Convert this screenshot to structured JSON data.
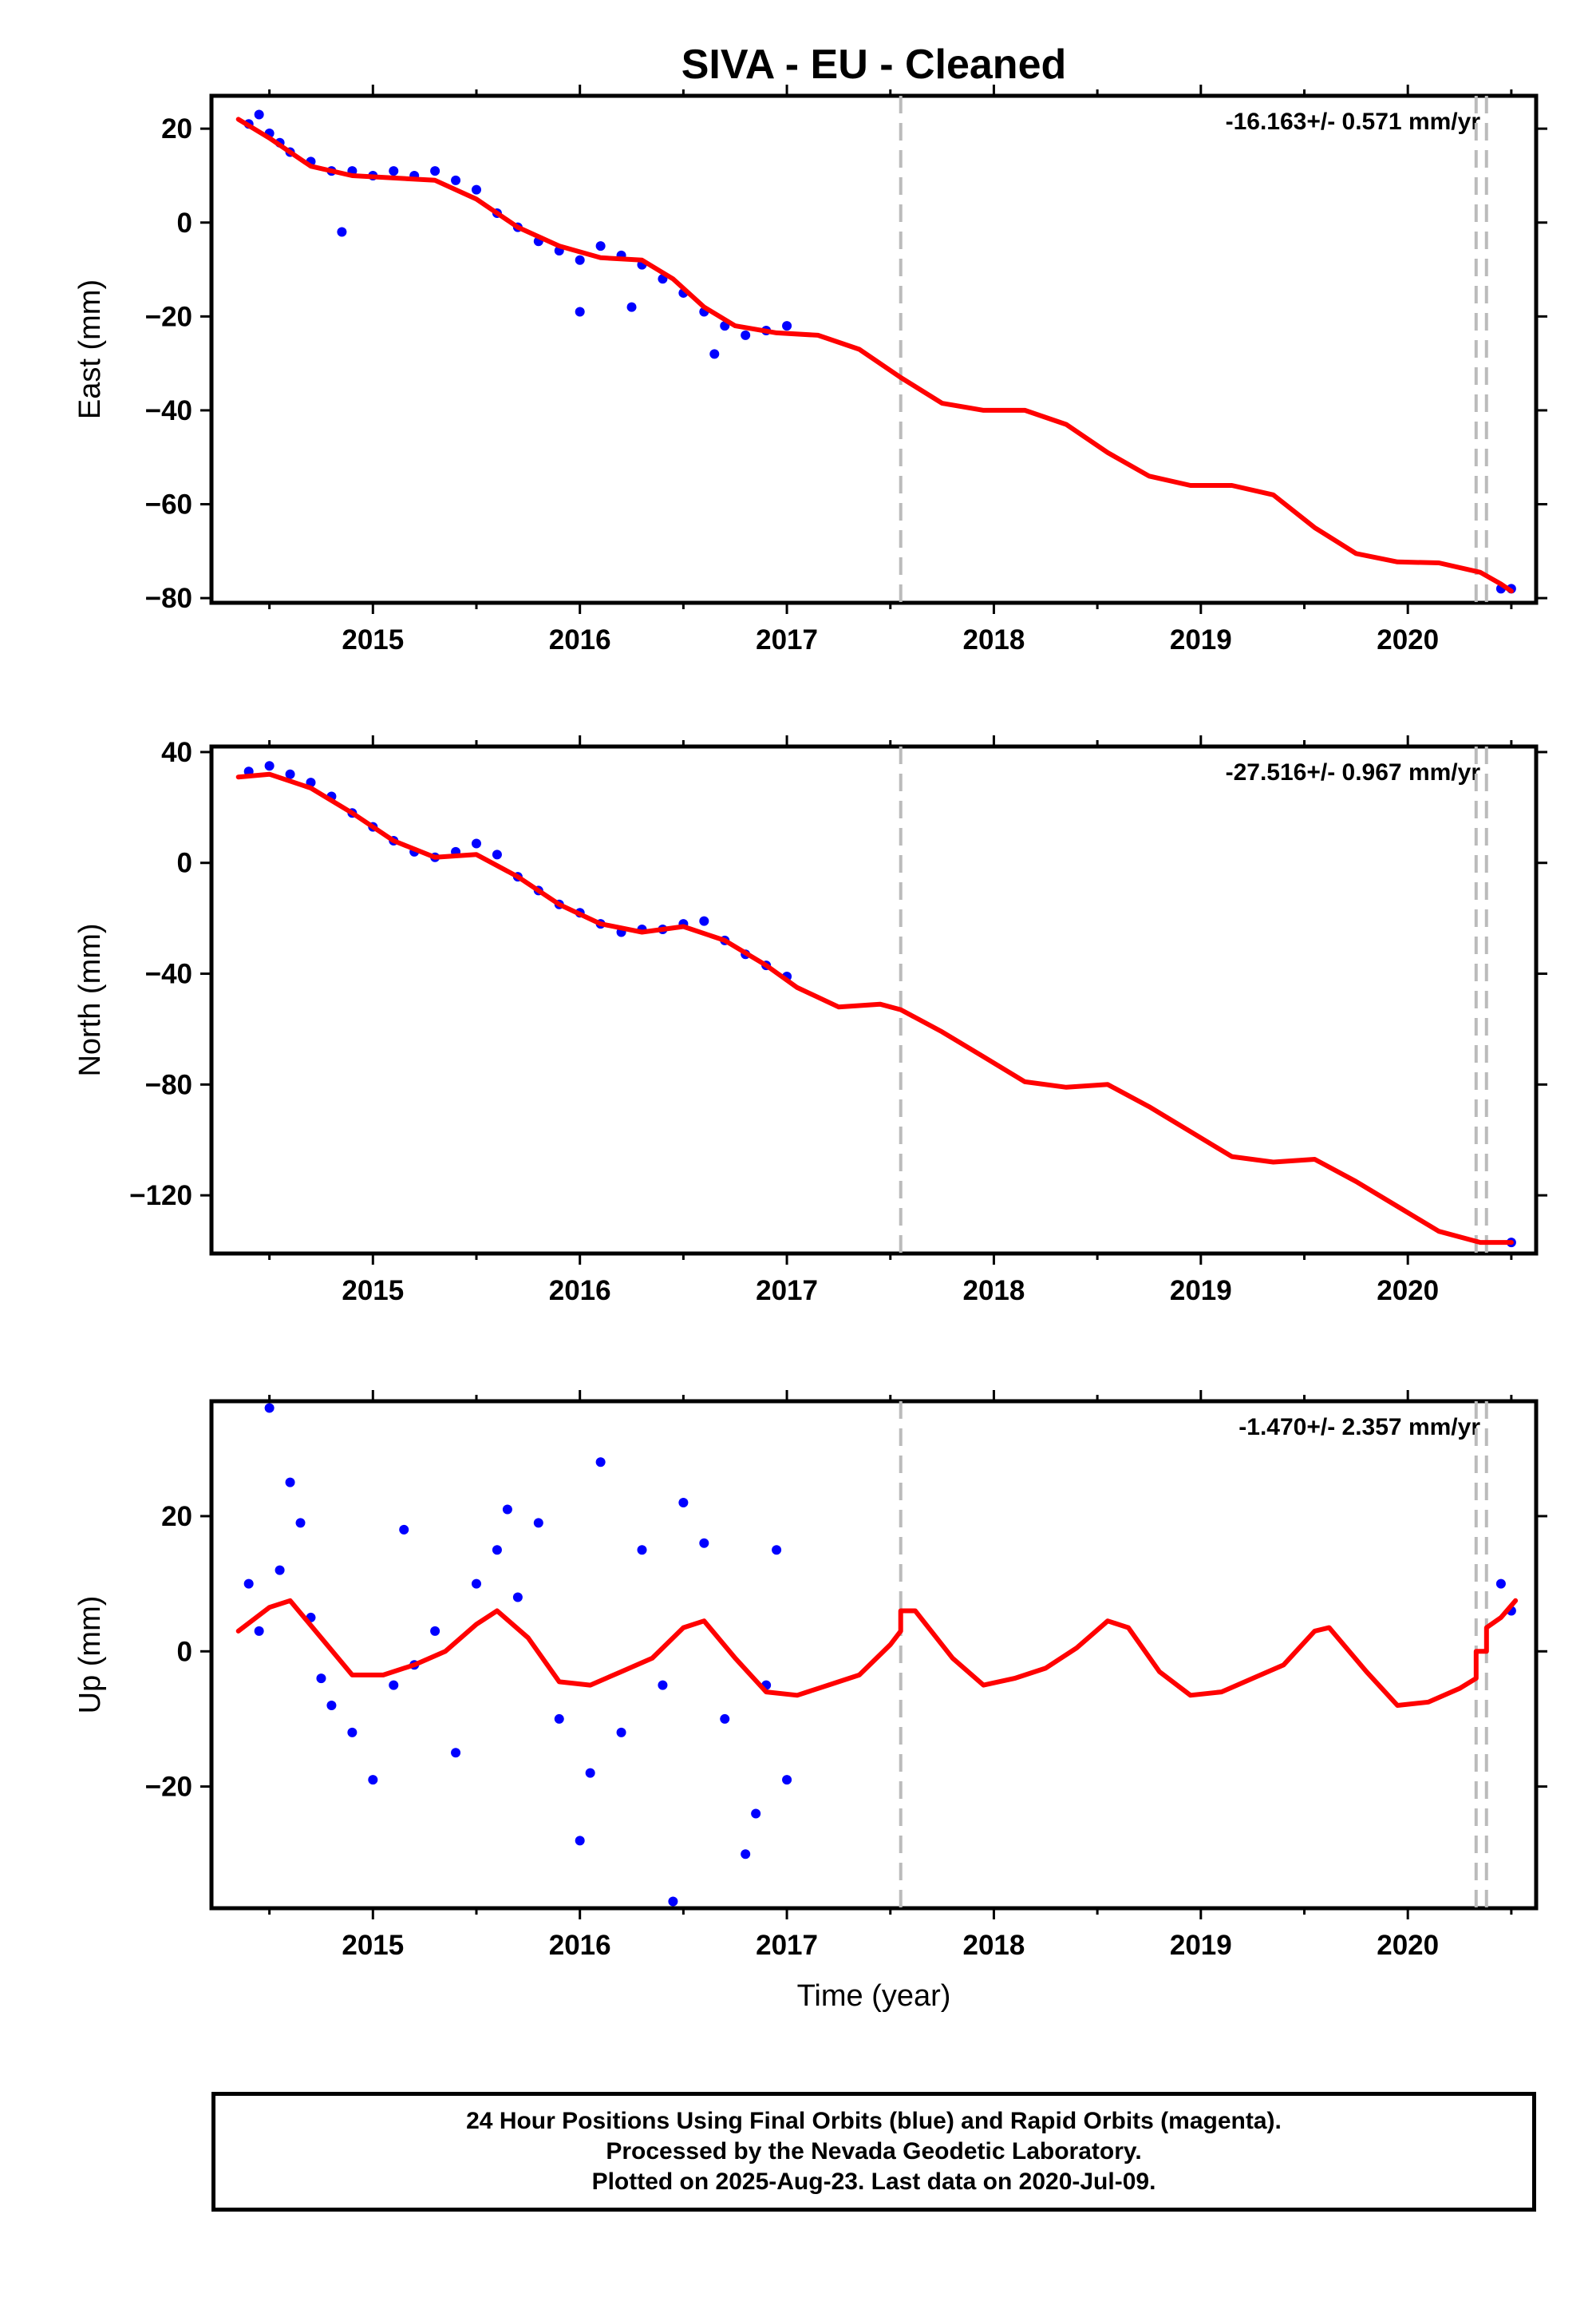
{
  "figure": {
    "title": "SIVA  - EU - Cleaned",
    "xlabel": "Time (year)"
  },
  "footer": {
    "line1": "24 Hour Positions Using Final Orbits (blue) and Rapid Orbits (magenta).",
    "line2": "Processed by the Nevada Geodetic Laboratory.",
    "line3": "Plotted on 2025-Aug-23. Last data on 2020-Jul-09."
  },
  "colors": {
    "data_points": "#0000ff",
    "model_line": "#ff0000",
    "event_lines": "#bbbbbb"
  },
  "event_lines_year": [
    2017.55,
    2020.33,
    2020.38
  ],
  "chart_data": [
    {
      "type": "scatter",
      "name": "east",
      "ylabel": "East (mm)",
      "rate_label": "-16.163+/- 0.571 mm/yr",
      "xlim": [
        2014.22,
        2020.62
      ],
      "ylim": [
        -81,
        27
      ],
      "xticks": [
        2015,
        2016,
        2017,
        2018,
        2019,
        2020
      ],
      "yticks": [
        20,
        0,
        -20,
        -40,
        -60,
        -80
      ],
      "scatter_sample": [
        [
          2014.4,
          21
        ],
        [
          2014.45,
          23
        ],
        [
          2014.5,
          19
        ],
        [
          2014.55,
          17
        ],
        [
          2014.6,
          15
        ],
        [
          2014.7,
          13
        ],
        [
          2014.8,
          11
        ],
        [
          2014.85,
          -2
        ],
        [
          2014.9,
          11
        ],
        [
          2015.0,
          10
        ],
        [
          2015.1,
          11
        ],
        [
          2015.2,
          10
        ],
        [
          2015.3,
          11
        ],
        [
          2015.4,
          9
        ],
        [
          2015.5,
          7
        ],
        [
          2015.6,
          2
        ],
        [
          2015.7,
          -1
        ],
        [
          2015.8,
          -4
        ],
        [
          2015.9,
          -6
        ],
        [
          2016.0,
          -8
        ],
        [
          2016.0,
          -19
        ],
        [
          2016.1,
          -5
        ],
        [
          2016.2,
          -7
        ],
        [
          2016.25,
          -18
        ],
        [
          2016.3,
          -9
        ],
        [
          2016.4,
          -12
        ],
        [
          2016.5,
          -15
        ],
        [
          2016.6,
          -19
        ],
        [
          2016.65,
          -28
        ],
        [
          2016.7,
          -22
        ],
        [
          2016.8,
          -24
        ],
        [
          2016.9,
          -23
        ],
        [
          2017.0,
          -22
        ],
        [
          2020.45,
          -78
        ],
        [
          2020.5,
          -78
        ]
      ],
      "model_line": [
        [
          2014.35,
          22
        ],
        [
          2014.5,
          18
        ],
        [
          2014.7,
          12
        ],
        [
          2014.9,
          10
        ],
        [
          2015.1,
          9.5
        ],
        [
          2015.3,
          9
        ],
        [
          2015.5,
          5
        ],
        [
          2015.7,
          -1
        ],
        [
          2015.9,
          -5
        ],
        [
          2016.1,
          -7.5
        ],
        [
          2016.3,
          -8
        ],
        [
          2016.45,
          -12
        ],
        [
          2016.6,
          -18
        ],
        [
          2016.75,
          -22
        ],
        [
          2016.95,
          -23.5
        ],
        [
          2017.15,
          -24
        ],
        [
          2017.35,
          -27
        ],
        [
          2017.55,
          -33
        ],
        [
          2017.75,
          -38.5
        ],
        [
          2017.95,
          -40
        ],
        [
          2018.15,
          -40
        ],
        [
          2018.35,
          -43
        ],
        [
          2018.55,
          -49
        ],
        [
          2018.75,
          -54
        ],
        [
          2018.95,
          -56
        ],
        [
          2019.15,
          -56
        ],
        [
          2019.35,
          -58
        ],
        [
          2019.55,
          -65
        ],
        [
          2019.75,
          -70.5
        ],
        [
          2019.95,
          -72.3
        ],
        [
          2020.15,
          -72.5
        ],
        [
          2020.35,
          -74.5
        ],
        [
          2020.45,
          -77
        ],
        [
          2020.5,
          -78.5
        ]
      ]
    },
    {
      "type": "scatter",
      "name": "north",
      "ylabel": "North (mm)",
      "rate_label": "-27.516+/- 0.967 mm/yr",
      "xlim": [
        2014.22,
        2020.62
      ],
      "ylim": [
        -141,
        42
      ],
      "xticks": [
        2015,
        2016,
        2017,
        2018,
        2019,
        2020
      ],
      "yticks": [
        40,
        0,
        -40,
        -80,
        -120
      ],
      "scatter_sample": [
        [
          2014.4,
          33
        ],
        [
          2014.5,
          35
        ],
        [
          2014.6,
          32
        ],
        [
          2014.7,
          29
        ],
        [
          2014.8,
          24
        ],
        [
          2014.9,
          18
        ],
        [
          2015.0,
          13
        ],
        [
          2015.1,
          8
        ],
        [
          2015.2,
          4
        ],
        [
          2015.3,
          2
        ],
        [
          2015.4,
          4
        ],
        [
          2015.5,
          7
        ],
        [
          2015.6,
          3
        ],
        [
          2015.7,
          -5
        ],
        [
          2015.8,
          -10
        ],
        [
          2015.9,
          -15
        ],
        [
          2016.0,
          -18
        ],
        [
          2016.1,
          -22
        ],
        [
          2016.2,
          -25
        ],
        [
          2016.3,
          -24
        ],
        [
          2016.4,
          -24
        ],
        [
          2016.5,
          -22
        ],
        [
          2016.6,
          -21
        ],
        [
          2016.7,
          -28
        ],
        [
          2016.8,
          -33
        ],
        [
          2016.9,
          -37
        ],
        [
          2017.0,
          -41
        ],
        [
          2020.5,
          -137
        ]
      ],
      "model_line": [
        [
          2014.35,
          31
        ],
        [
          2014.5,
          32
        ],
        [
          2014.7,
          27
        ],
        [
          2014.9,
          18
        ],
        [
          2015.1,
          8
        ],
        [
          2015.3,
          2
        ],
        [
          2015.5,
          3
        ],
        [
          2015.7,
          -5
        ],
        [
          2015.9,
          -15
        ],
        [
          2016.1,
          -22
        ],
        [
          2016.3,
          -25
        ],
        [
          2016.5,
          -23
        ],
        [
          2016.7,
          -28
        ],
        [
          2016.9,
          -37
        ],
        [
          2017.05,
          -45
        ],
        [
          2017.25,
          -52
        ],
        [
          2017.45,
          -51
        ],
        [
          2017.55,
          -53
        ],
        [
          2017.75,
          -61
        ],
        [
          2017.95,
          -70
        ],
        [
          2018.15,
          -79
        ],
        [
          2018.35,
          -81
        ],
        [
          2018.55,
          -80
        ],
        [
          2018.75,
          -88
        ],
        [
          2018.95,
          -97
        ],
        [
          2019.15,
          -106
        ],
        [
          2019.35,
          -108
        ],
        [
          2019.55,
          -107
        ],
        [
          2019.75,
          -115
        ],
        [
          2019.95,
          -124
        ],
        [
          2020.15,
          -133
        ],
        [
          2020.35,
          -137
        ],
        [
          2020.5,
          -137
        ]
      ]
    },
    {
      "type": "scatter",
      "name": "up",
      "ylabel": "Up (mm)",
      "rate_label": "-1.470+/- 2.357 mm/yr",
      "xlim": [
        2014.22,
        2020.62
      ],
      "ylim": [
        -38,
        37
      ],
      "xticks": [
        2015,
        2016,
        2017,
        2018,
        2019,
        2020
      ],
      "yticks": [
        20,
        0,
        -20
      ],
      "scatter_sample": [
        [
          2014.4,
          10
        ],
        [
          2014.45,
          3
        ],
        [
          2014.5,
          36
        ],
        [
          2014.55,
          12
        ],
        [
          2014.6,
          25
        ],
        [
          2014.65,
          19
        ],
        [
          2014.7,
          5
        ],
        [
          2014.75,
          -4
        ],
        [
          2014.8,
          -8
        ],
        [
          2014.9,
          -12
        ],
        [
          2015.0,
          -19
        ],
        [
          2015.1,
          -5
        ],
        [
          2015.15,
          18
        ],
        [
          2015.2,
          -2
        ],
        [
          2015.3,
          3
        ],
        [
          2015.4,
          -15
        ],
        [
          2015.5,
          10
        ],
        [
          2015.6,
          15
        ],
        [
          2015.65,
          21
        ],
        [
          2015.7,
          8
        ],
        [
          2015.8,
          19
        ],
        [
          2015.9,
          -10
        ],
        [
          2016.0,
          -28
        ],
        [
          2016.05,
          -18
        ],
        [
          2016.1,
          28
        ],
        [
          2016.2,
          -12
        ],
        [
          2016.3,
          15
        ],
        [
          2016.4,
          -5
        ],
        [
          2016.45,
          -37
        ],
        [
          2016.5,
          22
        ],
        [
          2016.6,
          16
        ],
        [
          2016.7,
          -10
        ],
        [
          2016.8,
          -30
        ],
        [
          2016.85,
          -24
        ],
        [
          2016.9,
          -5
        ],
        [
          2016.95,
          15
        ],
        [
          2017.0,
          -19
        ],
        [
          2020.45,
          10
        ],
        [
          2020.5,
          6
        ]
      ],
      "model_line": [
        [
          2014.35,
          3
        ],
        [
          2014.5,
          6.5
        ],
        [
          2014.6,
          7.5
        ],
        [
          2014.75,
          2
        ],
        [
          2014.9,
          -3.5
        ],
        [
          2015.05,
          -3.5
        ],
        [
          2015.2,
          -2
        ],
        [
          2015.35,
          0
        ],
        [
          2015.5,
          4
        ],
        [
          2015.6,
          6
        ],
        [
          2015.75,
          2
        ],
        [
          2015.9,
          -4.5
        ],
        [
          2016.05,
          -5
        ],
        [
          2016.2,
          -3
        ],
        [
          2016.35,
          -1
        ],
        [
          2016.5,
          3.5
        ],
        [
          2016.6,
          4.5
        ],
        [
          2016.75,
          -1
        ],
        [
          2016.9,
          -6
        ],
        [
          2017.05,
          -6.5
        ],
        [
          2017.2,
          -5
        ],
        [
          2017.35,
          -3.5
        ],
        [
          2017.5,
          1
        ],
        [
          2017.55,
          3
        ],
        [
          2017.55,
          6
        ],
        [
          2017.62,
          6
        ],
        [
          2017.8,
          -1
        ],
        [
          2017.95,
          -5
        ],
        [
          2018.1,
          -4
        ],
        [
          2018.25,
          -2.5
        ],
        [
          2018.4,
          0.5
        ],
        [
          2018.55,
          4.5
        ],
        [
          2018.65,
          3.5
        ],
        [
          2018.8,
          -3
        ],
        [
          2018.95,
          -6.5
        ],
        [
          2019.1,
          -6
        ],
        [
          2019.25,
          -4
        ],
        [
          2019.4,
          -2
        ],
        [
          2019.55,
          3
        ],
        [
          2019.62,
          3.5
        ],
        [
          2019.8,
          -3
        ],
        [
          2019.95,
          -8
        ],
        [
          2020.1,
          -7.5
        ],
        [
          2020.25,
          -5.5
        ],
        [
          2020.33,
          -4
        ],
        [
          2020.33,
          0
        ],
        [
          2020.38,
          0
        ],
        [
          2020.38,
          3.5
        ],
        [
          2020.45,
          5
        ],
        [
          2020.52,
          7.5
        ]
      ]
    }
  ]
}
